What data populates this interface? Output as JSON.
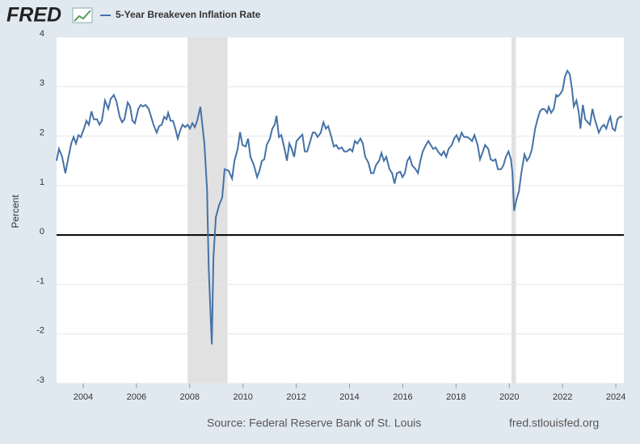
{
  "logo": "FRED",
  "source": "Source: Federal Reserve Bank of St. Louis",
  "site": "fred.stlouisfed.org",
  "chart_data": {
    "type": "line",
    "ylabel": "Percent",
    "xlim": [
      2003,
      2024.3
    ],
    "xticks": [
      2004,
      2006,
      2008,
      2010,
      2012,
      2014,
      2016,
      2018,
      2020,
      2022,
      2024
    ],
    "ylim": [
      -3,
      4
    ],
    "yticks": [
      -3,
      -2,
      -1,
      0,
      1,
      2,
      3,
      4
    ],
    "grid": true,
    "recessions": [
      [
        2007.92,
        2009.42
      ],
      [
        2020.08,
        2020.25
      ]
    ],
    "x": [
      2003.0,
      2003.09,
      2003.21,
      2003.33,
      2003.42,
      2003.55,
      2003.64,
      2003.73,
      2003.82,
      2003.91,
      2004.03,
      2004.12,
      2004.21,
      2004.31,
      2004.4,
      2004.52,
      2004.61,
      2004.7,
      2004.82,
      2004.94,
      2005.03,
      2005.15,
      2005.25,
      2005.37,
      2005.46,
      2005.55,
      2005.67,
      2005.76,
      2005.85,
      2005.94,
      2006.07,
      2006.16,
      2006.25,
      2006.34,
      2006.46,
      2006.55,
      2006.64,
      2006.76,
      2006.85,
      2006.95,
      2007.04,
      2007.13,
      2007.19,
      2007.28,
      2007.37,
      2007.46,
      2007.55,
      2007.64,
      2007.73,
      2007.83,
      2007.92,
      2008.01,
      2008.1,
      2008.19,
      2008.28,
      2008.4,
      2008.49,
      2008.55,
      2008.65,
      2008.71,
      2008.77,
      2008.83,
      2008.89,
      2008.98,
      2009.1,
      2009.22,
      2009.31,
      2009.46,
      2009.59,
      2009.68,
      2009.8,
      2009.89,
      2009.98,
      2010.1,
      2010.19,
      2010.28,
      2010.41,
      2010.53,
      2010.62,
      2010.71,
      2010.8,
      2010.89,
      2011.01,
      2011.1,
      2011.19,
      2011.26,
      2011.35,
      2011.44,
      2011.56,
      2011.65,
      2011.74,
      2011.83,
      2011.92,
      2012.01,
      2012.14,
      2012.23,
      2012.32,
      2012.41,
      2012.5,
      2012.62,
      2012.71,
      2012.8,
      2012.92,
      2013.02,
      2013.11,
      2013.2,
      2013.32,
      2013.41,
      2013.5,
      2013.59,
      2013.71,
      2013.8,
      2013.9,
      2014.02,
      2014.11,
      2014.2,
      2014.29,
      2014.41,
      2014.5,
      2014.59,
      2014.71,
      2014.81,
      2014.9,
      2014.99,
      2015.11,
      2015.2,
      2015.29,
      2015.38,
      2015.5,
      2015.6,
      2015.69,
      2015.78,
      2015.9,
      2015.99,
      2016.08,
      2016.17,
      2016.26,
      2016.35,
      2016.48,
      2016.57,
      2016.66,
      2016.75,
      2016.87,
      2016.96,
      2017.05,
      2017.14,
      2017.23,
      2017.36,
      2017.45,
      2017.54,
      2017.63,
      2017.72,
      2017.84,
      2017.93,
      2018.02,
      2018.11,
      2018.21,
      2018.3,
      2018.42,
      2018.51,
      2018.6,
      2018.69,
      2018.81,
      2018.9,
      2018.99,
      2019.09,
      2019.21,
      2019.3,
      2019.39,
      2019.48,
      2019.57,
      2019.69,
      2019.78,
      2019.87,
      2019.97,
      2020.06,
      2020.12,
      2020.18,
      2020.27,
      2020.36,
      2020.45,
      2020.57,
      2020.66,
      2020.76,
      2020.85,
      2020.97,
      2021.06,
      2021.15,
      2021.24,
      2021.33,
      2021.42,
      2021.48,
      2021.57,
      2021.67,
      2021.76,
      2021.82,
      2021.91,
      2022.0,
      2022.09,
      2022.18,
      2022.27,
      2022.36,
      2022.42,
      2022.52,
      2022.61,
      2022.67,
      2022.76,
      2022.85,
      2022.94,
      2023.03,
      2023.12,
      2023.21,
      2023.3,
      2023.36,
      2023.46,
      2023.55,
      2023.64,
      2023.73,
      2023.79,
      2023.88,
      2023.97,
      2024.06,
      2024.15,
      2024.24
    ],
    "series": [
      {
        "name": "5-Year Breakeven Inflation Rate",
        "color": "#4572a7",
        "values": [
          1.5,
          1.74,
          1.58,
          1.25,
          1.5,
          1.85,
          1.98,
          1.85,
          2.02,
          1.98,
          2.15,
          2.31,
          2.23,
          2.5,
          2.34,
          2.34,
          2.23,
          2.31,
          2.72,
          2.55,
          2.75,
          2.83,
          2.7,
          2.39,
          2.28,
          2.34,
          2.68,
          2.6,
          2.31,
          2.26,
          2.55,
          2.63,
          2.6,
          2.63,
          2.55,
          2.39,
          2.23,
          2.07,
          2.2,
          2.23,
          2.39,
          2.34,
          2.47,
          2.31,
          2.31,
          2.15,
          1.95,
          2.11,
          2.23,
          2.18,
          2.23,
          2.15,
          2.26,
          2.18,
          2.31,
          2.59,
          2.15,
          1.85,
          0.93,
          -0.62,
          -1.43,
          -2.21,
          -0.46,
          0.36,
          0.6,
          0.76,
          1.33,
          1.3,
          1.14,
          1.5,
          1.74,
          2.08,
          1.82,
          1.79,
          1.95,
          1.58,
          1.41,
          1.17,
          1.3,
          1.5,
          1.53,
          1.82,
          1.95,
          2.15,
          2.23,
          2.41,
          1.98,
          2.02,
          1.74,
          1.5,
          1.85,
          1.74,
          1.58,
          1.9,
          1.98,
          2.03,
          1.69,
          1.69,
          1.85,
          2.07,
          2.07,
          1.98,
          2.07,
          2.28,
          2.15,
          2.2,
          1.98,
          1.79,
          1.82,
          1.74,
          1.77,
          1.69,
          1.69,
          1.74,
          1.69,
          1.9,
          1.85,
          1.95,
          1.85,
          1.58,
          1.46,
          1.25,
          1.25,
          1.41,
          1.5,
          1.66,
          1.5,
          1.58,
          1.33,
          1.25,
          1.04,
          1.25,
          1.28,
          1.17,
          1.25,
          1.5,
          1.58,
          1.41,
          1.33,
          1.25,
          1.5,
          1.69,
          1.82,
          1.9,
          1.82,
          1.74,
          1.77,
          1.66,
          1.61,
          1.69,
          1.58,
          1.74,
          1.82,
          1.95,
          2.02,
          1.9,
          2.07,
          1.98,
          1.98,
          1.95,
          1.9,
          2.02,
          1.82,
          1.53,
          1.66,
          1.82,
          1.74,
          1.53,
          1.5,
          1.53,
          1.33,
          1.33,
          1.41,
          1.58,
          1.69,
          1.53,
          1.25,
          0.49,
          0.72,
          0.88,
          1.25,
          1.63,
          1.5,
          1.58,
          1.74,
          2.15,
          2.34,
          2.5,
          2.55,
          2.54,
          2.47,
          2.59,
          2.47,
          2.55,
          2.83,
          2.8,
          2.85,
          2.93,
          3.2,
          3.32,
          3.25,
          2.93,
          2.6,
          2.72,
          2.47,
          2.15,
          2.63,
          2.34,
          2.28,
          2.23,
          2.55,
          2.34,
          2.18,
          2.07,
          2.18,
          2.23,
          2.15,
          2.31,
          2.39,
          2.15,
          2.11,
          2.34,
          2.39,
          2.39
        ]
      }
    ]
  }
}
